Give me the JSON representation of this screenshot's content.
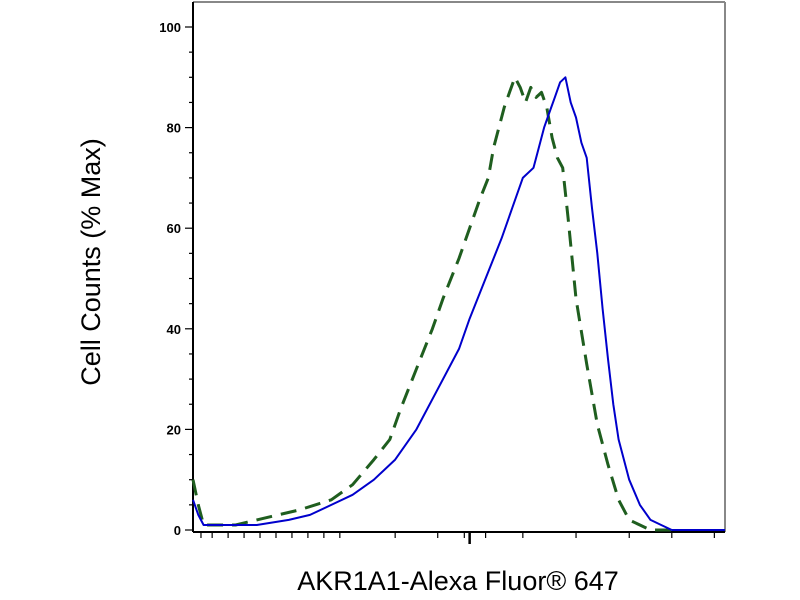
{
  "chart_data": {
    "type": "line",
    "xlabel": "AKR1A1-Alexa Fluor® 647",
    "ylabel": "Cell Counts (% Max)",
    "x_scale": "log",
    "x_tick_labels": [],
    "ylim": [
      0,
      100
    ],
    "y_ticks": [
      0,
      20,
      40,
      60,
      80,
      100
    ],
    "grid": false,
    "legend": "none",
    "series": [
      {
        "style": "dashed",
        "color": "#1f5e1f",
        "x": [
          0.0,
          0.01,
          0.02,
          0.04,
          0.08,
          0.12,
          0.2,
          0.26,
          0.3,
          0.34,
          0.37,
          0.39,
          0.42,
          0.45,
          0.47,
          0.5,
          0.52,
          0.54,
          0.555,
          0.565,
          0.575,
          0.585,
          0.595,
          0.605,
          0.615,
          0.625,
          0.635,
          0.645,
          0.655,
          0.665,
          0.675,
          0.685,
          0.695,
          0.705,
          0.72,
          0.74,
          0.76,
          0.78,
          0.8,
          0.82,
          0.84,
          0.86,
          0.88,
          0.9
        ],
        "y": [
          10,
          5,
          1,
          1,
          1,
          2,
          4,
          6,
          9,
          14,
          18,
          24,
          32,
          40,
          46,
          54,
          60,
          66,
          70,
          76,
          80,
          84,
          87,
          90,
          88,
          85,
          88,
          86,
          87,
          84,
          78,
          74,
          72,
          62,
          46,
          33,
          21,
          13,
          6,
          2,
          1,
          0,
          0,
          0
        ]
      },
      {
        "style": "solid",
        "color": "#0000cc",
        "x": [
          0.0,
          0.01,
          0.02,
          0.04,
          0.08,
          0.12,
          0.18,
          0.22,
          0.26,
          0.3,
          0.34,
          0.38,
          0.42,
          0.46,
          0.5,
          0.52,
          0.55,
          0.58,
          0.6,
          0.62,
          0.64,
          0.65,
          0.66,
          0.67,
          0.68,
          0.69,
          0.7,
          0.71,
          0.72,
          0.73,
          0.74,
          0.75,
          0.76,
          0.77,
          0.78,
          0.79,
          0.8,
          0.82,
          0.84,
          0.86,
          0.88,
          0.9,
          0.94,
          1.0
        ],
        "y": [
          6,
          3,
          1,
          1,
          1,
          1,
          2,
          3,
          5,
          7,
          10,
          14,
          20,
          28,
          36,
          42,
          50,
          58,
          64,
          70,
          72,
          76,
          80,
          83,
          86,
          89,
          90,
          85,
          82,
          77,
          74,
          64,
          55,
          44,
          34,
          25,
          18,
          10,
          5,
          2,
          1,
          0,
          0,
          0
        ]
      }
    ]
  }
}
